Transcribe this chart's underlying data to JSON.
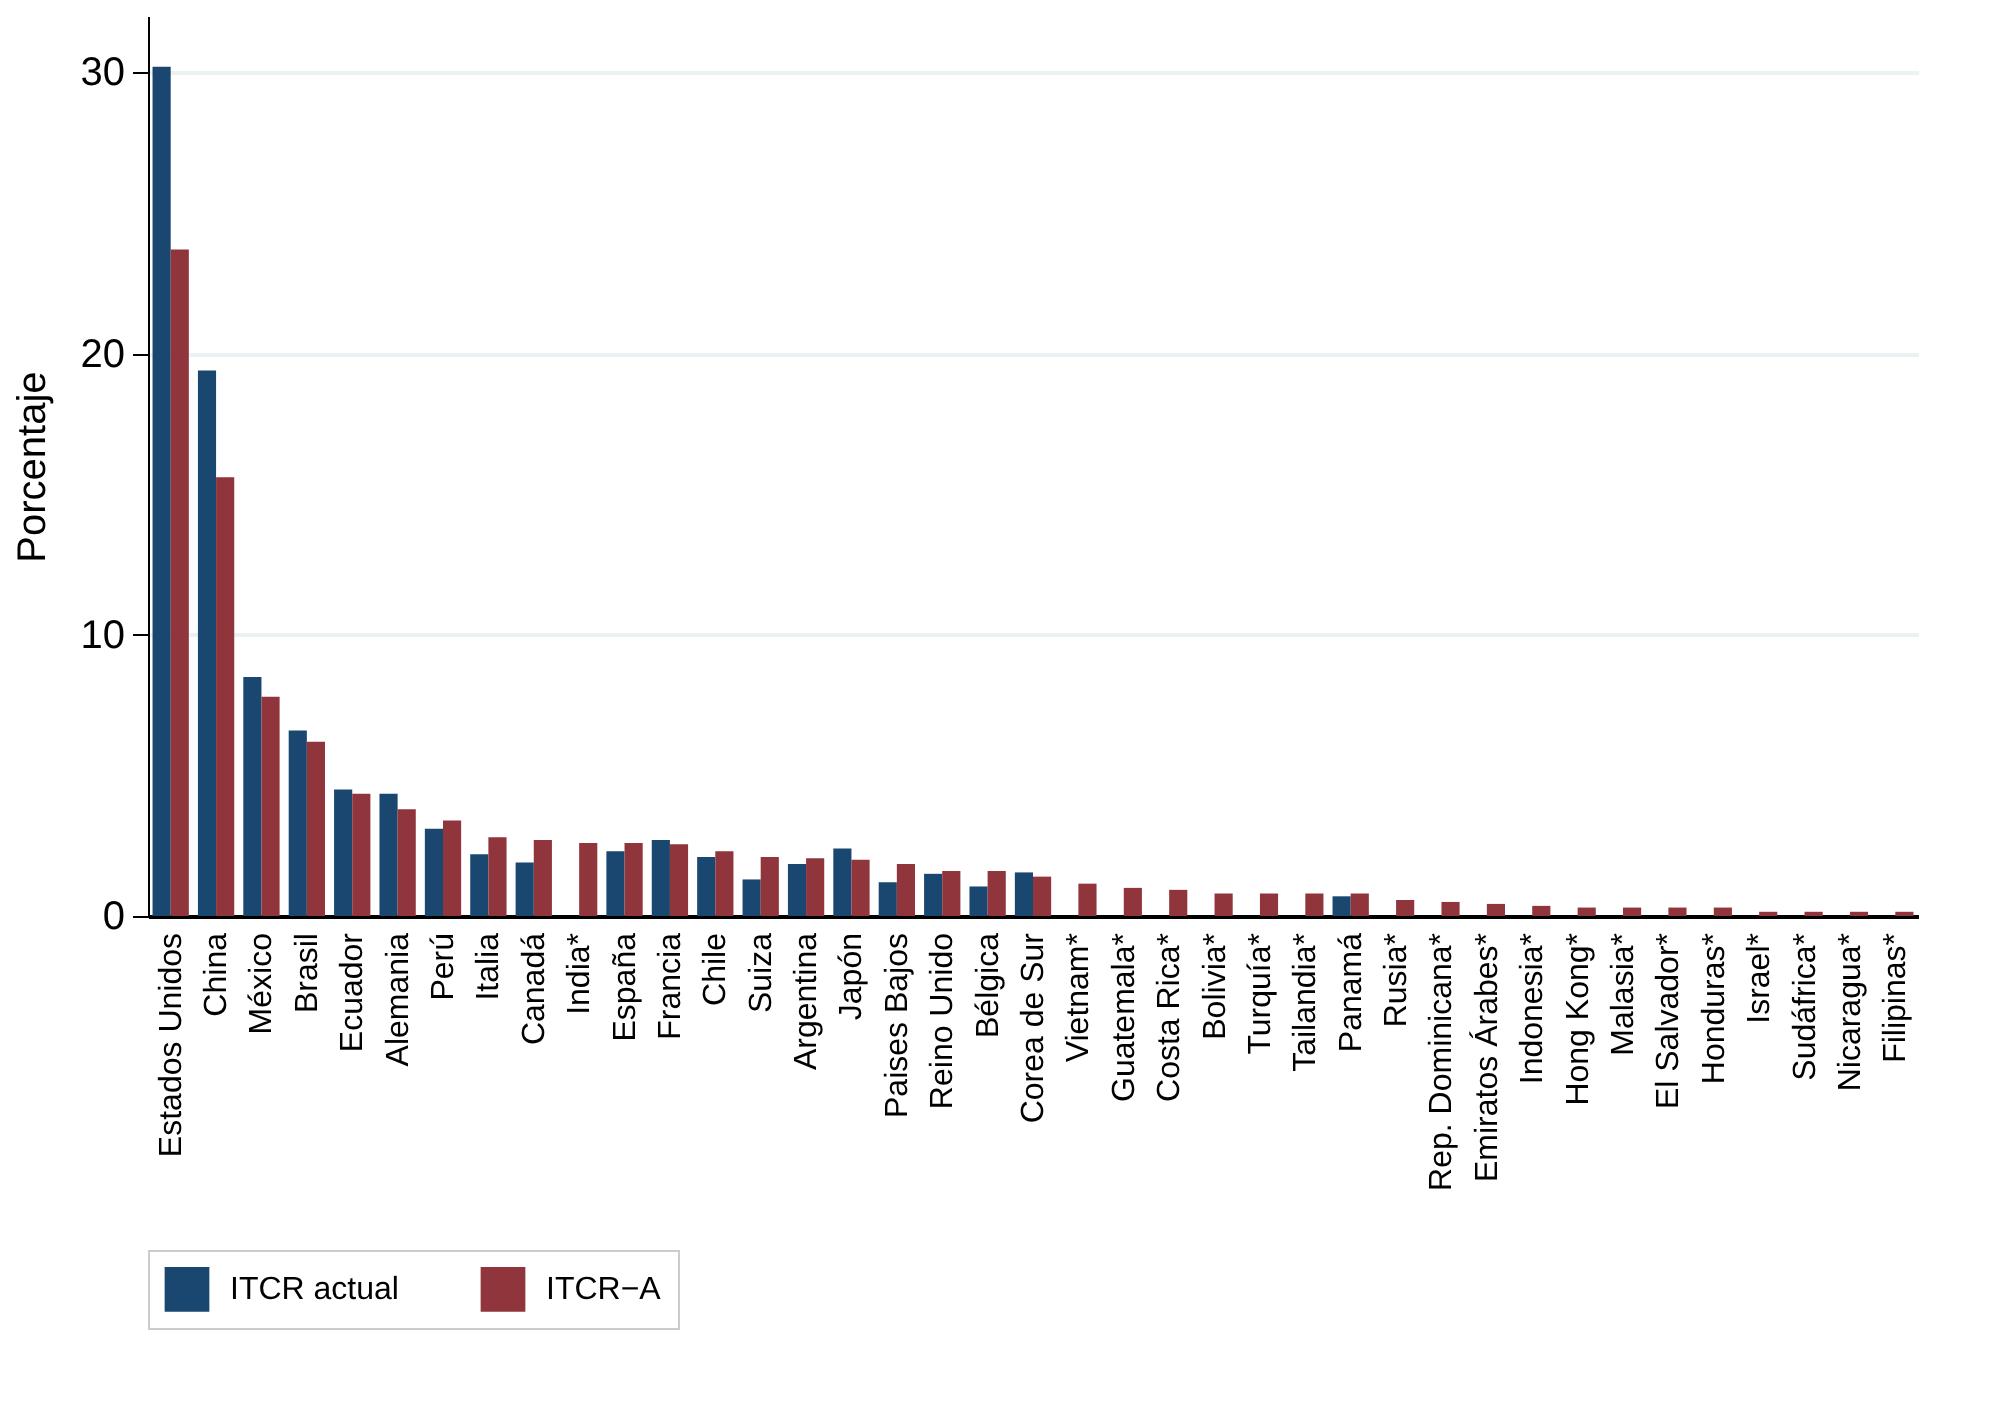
{
  "chart_data": {
    "type": "bar",
    "ylabel": "Porcentaje",
    "categories": [
      "Estados Unidos",
      "China",
      "México",
      "Brasil",
      "Ecuador",
      "Alemania",
      "Perú",
      "Italia",
      "Canadá",
      "India*",
      "España",
      "Francia",
      "Chile",
      "Suiza",
      "Argentina",
      "Japón",
      "Paises Bajos",
      "Reino Unido",
      "Bélgica",
      "Corea de Sur",
      "Vietnam*",
      "Guatemala*",
      "Costa Rica*",
      "Bolivia*",
      "Turquía*",
      "Tailandia*",
      "Panamá",
      "Rusia*",
      "Rep. Dominicana*",
      "Emiratos Árabes*",
      "Indonesia*",
      "Hong Kong*",
      "Malasia*",
      "El Salvador*",
      "Honduras*",
      "Israel*",
      "Sudáfrica*",
      "Nicaragua*",
      "Filipinas*"
    ],
    "series": [
      {
        "name": "ITCR actual",
        "color": "#1a476f",
        "values": [
          30.2,
          19.4,
          8.5,
          6.6,
          4.5,
          4.35,
          3.1,
          2.2,
          1.9,
          null,
          2.3,
          2.7,
          2.1,
          1.3,
          1.85,
          2.4,
          1.2,
          1.5,
          1.05,
          1.55,
          null,
          null,
          null,
          null,
          null,
          null,
          0.7,
          null,
          null,
          null,
          null,
          null,
          null,
          null,
          null,
          null,
          null,
          null,
          null
        ]
      },
      {
        "name": "ITCR−A",
        "color": "#90353b",
        "values": [
          23.7,
          15.6,
          7.8,
          6.2,
          4.35,
          3.8,
          3.4,
          2.8,
          2.7,
          2.6,
          2.6,
          2.55,
          2.3,
          2.1,
          2.05,
          2.0,
          1.85,
          1.6,
          1.6,
          1.4,
          1.15,
          1.0,
          0.93,
          0.8,
          0.8,
          0.8,
          0.8,
          0.57,
          0.5,
          0.43,
          0.36,
          0.3,
          0.3,
          0.3,
          0.3,
          0.15,
          0.15,
          0.15,
          0.15
        ]
      }
    ],
    "ylim": [
      0,
      32
    ],
    "yticks": [
      0,
      10,
      20,
      30
    ],
    "grid": "y",
    "legend": "bottom"
  }
}
